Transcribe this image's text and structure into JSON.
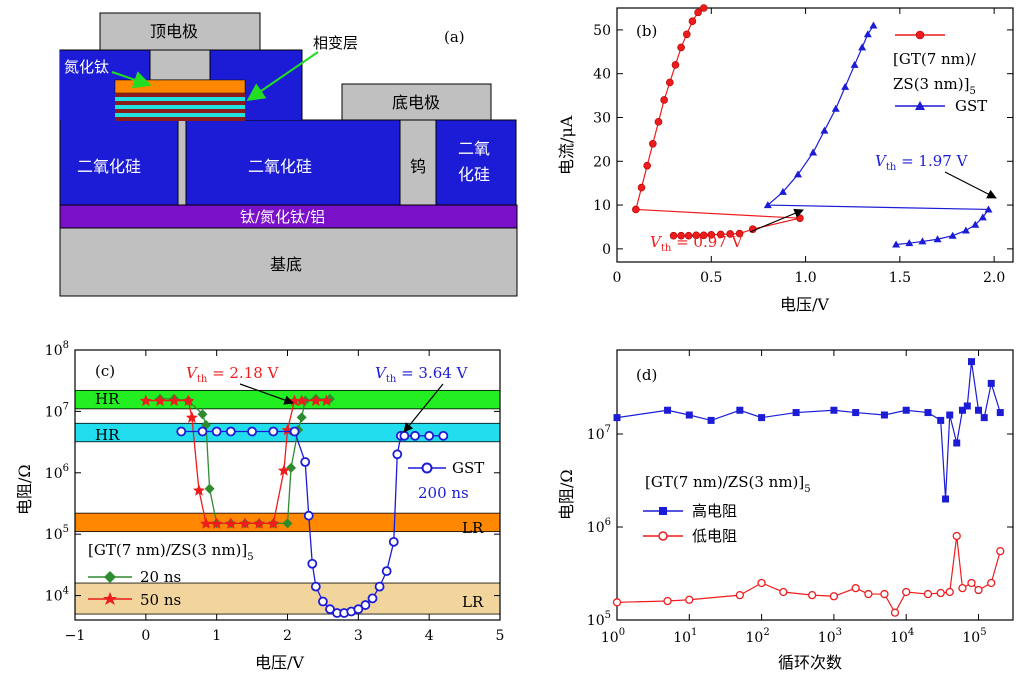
{
  "panel_a": {
    "label": "(a)",
    "top_electrode": "顶电极",
    "phase_change_layer": "相变层",
    "tin_label": "氮化钛",
    "bottom_electrode": "底电极",
    "sio2_left": "二氧化硅",
    "sio2_mid": "二氧化硅",
    "tungsten": "钨",
    "sio2_right_1": "二氧",
    "sio2_right_2": "化硅",
    "metal_stack": "钛/氮化钛/铝",
    "substrate": "基底"
  },
  "panel_b": {
    "label": "(b)",
    "legend_1a": "[GT(7 nm)/",
    "legend_1b": "ZS(3 nm)]",
    "legend_1_sub": "5",
    "legend_2": "GST",
    "vth_gt_prefix": "V",
    "vth_gt_sub": "th",
    "vth_gt_value": " = 0.97 V",
    "vth_gst_prefix": "V",
    "vth_gst_sub": "th",
    "vth_gst_value": " = 1.97 V"
  },
  "panel_c": {
    "label": "(c)",
    "band_hr1": "HR",
    "band_hr2": "HR",
    "band_lr1": "LR",
    "band_lr2": "LR",
    "vth_red_prefix": "V",
    "vth_red_sub": "th",
    "vth_red_value": " = 2.18 V",
    "vth_blue_prefix": "V",
    "vth_blue_sub": "th",
    "vth_blue_value": " = 3.64 V",
    "legend_gst": "GST",
    "legend_gst_2": "200 ns",
    "legend_title": "[GT(7 nm)/ZS(3 nm)]",
    "legend_title_sub": "5",
    "legend_20": "20 ns",
    "legend_50": "50 ns"
  },
  "panel_d": {
    "label": "(d)",
    "legend_title": "[GT(7 nm)/ZS(3 nm)]",
    "legend_title_sub": "5",
    "legend_high": "高电阻",
    "legend_low": "低电阻"
  },
  "colors": {
    "red": "#ee1c1c",
    "blue": "#1c1cd6",
    "green": "#2e8b2e"
  },
  "chart_data": [
    {
      "type": "line",
      "panel": "b",
      "xlabel": "电压/V",
      "ylabel": "电流/μA",
      "xlim": [
        0,
        2.1
      ],
      "ylim": [
        -3,
        55
      ],
      "xticks": [
        0,
        0.5,
        1.0,
        1.5,
        2.0
      ],
      "xtick_labels": [
        "0",
        "0.5",
        "1.0",
        "1.5",
        "2.0"
      ],
      "yticks": [
        0,
        10,
        20,
        30,
        40,
        50
      ],
      "series": [
        {
          "name": "[GT(7 nm)/ZS(3 nm)]5",
          "x": [
            0.3,
            0.34,
            0.38,
            0.42,
            0.46,
            0.5,
            0.55,
            0.6,
            0.65,
            0.72,
            0.97,
            0.1,
            0.13,
            0.16,
            0.19,
            0.22,
            0.25,
            0.28,
            0.31,
            0.34,
            0.37,
            0.4,
            0.43,
            0.46
          ],
          "y": [
            3,
            3,
            3,
            3.1,
            3.1,
            3.2,
            3.3,
            3.4,
            3.5,
            4.5,
            7,
            9,
            14,
            19,
            24,
            29,
            34,
            38,
            42,
            46,
            49,
            52,
            54,
            55
          ]
        },
        {
          "name": "GST",
          "x": [
            1.48,
            1.55,
            1.62,
            1.7,
            1.78,
            1.85,
            1.9,
            1.94,
            1.97,
            0.8,
            0.88,
            0.96,
            1.04,
            1.1,
            1.16,
            1.21,
            1.26,
            1.3,
            1.33,
            1.36
          ],
          "y": [
            1,
            1.3,
            1.7,
            2.2,
            3,
            4.2,
            5.5,
            7.2,
            9,
            10,
            13,
            17,
            22,
            27,
            32,
            37,
            42,
            46,
            49,
            51
          ]
        }
      ],
      "annotations": [
        "Vth = 0.97 V",
        "Vth = 1.97 V"
      ]
    },
    {
      "type": "line",
      "panel": "c",
      "xlabel": "电压/V",
      "ylabel": "电阻/Ω",
      "xlim": [
        -1,
        5
      ],
      "ylim": [
        4000,
        100000000
      ],
      "yscale": "log",
      "xticks": [
        -1,
        0,
        1,
        2,
        3,
        4,
        5
      ],
      "xtick_labels": [
        "−1",
        "0",
        "1",
        "2",
        "3",
        "4",
        "5"
      ],
      "series": [
        {
          "name": "20 ns",
          "x": [
            0.2,
            0.4,
            0.6,
            0.8,
            0.85,
            0.9,
            1.0,
            1.2,
            1.4,
            1.6,
            1.8,
            2.0,
            2.05,
            2.15,
            2.2,
            2.25,
            2.4,
            2.6
          ],
          "y": [
            16000000,
            16000000,
            15000000,
            9000000,
            6000000,
            550000,
            150000,
            150000,
            150000,
            150000,
            150000,
            150000,
            1200000,
            5000000,
            8000000,
            15000000,
            16000000,
            16000000
          ]
        },
        {
          "name": "50 ns",
          "x": [
            0,
            0.2,
            0.4,
            0.6,
            0.65,
            0.75,
            0.85,
            1.0,
            1.2,
            1.4,
            1.6,
            1.8,
            1.95,
            2.0,
            2.1,
            2.2,
            2.4,
            2.55
          ],
          "y": [
            15000000,
            15000000,
            15000000,
            15000000,
            8000000,
            520000,
            150000,
            150000,
            150000,
            150000,
            150000,
            150000,
            1100000,
            5000000,
            15000000,
            15000000,
            15000000,
            15000000
          ]
        },
        {
          "name": "GST 200 ns",
          "x": [
            0.5,
            0.8,
            1.0,
            1.2,
            1.5,
            1.8,
            2.1,
            2.25,
            2.3,
            2.35,
            2.4,
            2.5,
            2.6,
            2.7,
            2.8,
            2.9,
            3.0,
            3.1,
            3.2,
            3.3,
            3.4,
            3.5,
            3.55,
            3.6,
            3.65,
            3.8,
            4.0,
            4.2
          ],
          "y": [
            4700000,
            4700000,
            4700000,
            4700000,
            4700000,
            4700000,
            4700000,
            1500000,
            200000,
            33000,
            14000,
            8000,
            6000,
            5200,
            5200,
            5500,
            6000,
            7000,
            9000,
            14000,
            25000,
            75000,
            2000000,
            4000000,
            4000000,
            4000000,
            4000000,
            4000000
          ]
        }
      ],
      "bands": [
        "HR",
        "HR",
        "LR",
        "LR"
      ],
      "annotations": [
        "Vth = 2.18 V",
        "Vth = 3.64 V"
      ]
    },
    {
      "type": "line",
      "panel": "d",
      "xlabel": "循环次数",
      "ylabel": "电阻/Ω",
      "xscale": "log",
      "yscale": "log",
      "xlim": [
        1,
        300000
      ],
      "ylim": [
        100000,
        80000000
      ],
      "series": [
        {
          "name": "高电阻",
          "x": [
            1,
            5,
            10,
            20,
            50,
            100,
            300,
            1000,
            2000,
            5000,
            10000,
            20000,
            30000,
            35000,
            40000,
            50000,
            60000,
            70000,
            80000,
            100000,
            120000,
            150000,
            200000
          ],
          "y": [
            15000000,
            18000000,
            16000000,
            14000000,
            18000000,
            15000000,
            17000000,
            18000000,
            17000000,
            16000000,
            18000000,
            17000000,
            14000000,
            2000000,
            16000000,
            8000000,
            18000000,
            20000000,
            60000000,
            18000000,
            15000000,
            35000000,
            17000000
          ]
        },
        {
          "name": "低电阻",
          "x": [
            1,
            5,
            10,
            50,
            100,
            200,
            500,
            1000,
            2000,
            3000,
            5000,
            7000,
            10000,
            20000,
            30000,
            40000,
            50000,
            60000,
            80000,
            100000,
            150000,
            200000
          ],
          "y": [
            155000,
            160000,
            165000,
            185000,
            250000,
            200000,
            185000,
            180000,
            220000,
            190000,
            190000,
            120000,
            200000,
            190000,
            195000,
            200000,
            800000,
            220000,
            250000,
            210000,
            250000,
            550000
          ]
        }
      ]
    }
  ]
}
